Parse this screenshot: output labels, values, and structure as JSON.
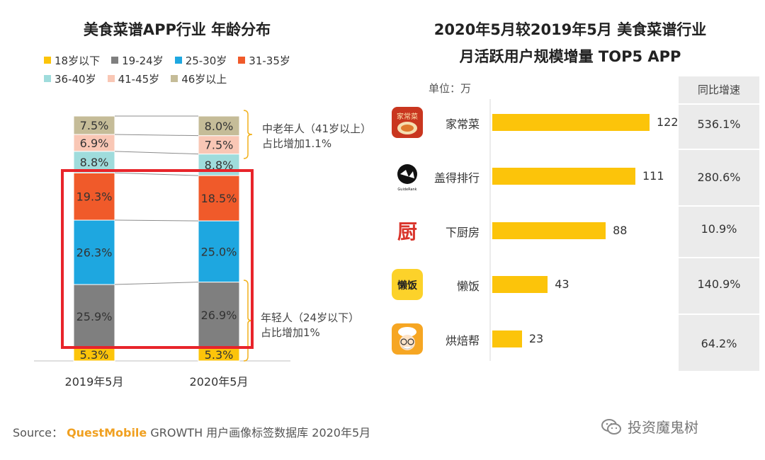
{
  "left": {
    "title": "美食菜谱APP行业 年龄分布",
    "legend": [
      {
        "label": "18岁以下",
        "color": "#fcc40a"
      },
      {
        "label": "19-24岁",
        "color": "#7f7f7f"
      },
      {
        "label": "25-30岁",
        "color": "#1ea7e0"
      },
      {
        "label": "31-35岁",
        "color": "#f05a2a"
      },
      {
        "label": "36-40岁",
        "color": "#9fdcdc"
      },
      {
        "label": "41-45岁",
        "color": "#f9c7b5"
      },
      {
        "label": "46岁以上",
        "color": "#c5bc98"
      }
    ],
    "annotation_old": {
      "line1": "中老年人（41岁以上）",
      "line2": "占比增加1.1%"
    },
    "annotation_young": {
      "line1": "年轻人（24岁以下）",
      "line2": "占比增加1%"
    }
  },
  "right": {
    "title_line1": "2020年5月较2019年5月 美食菜谱行业",
    "title_line2": "月活跃用户规模增量 TOP5 APP",
    "unit": "单位：万",
    "yoy_header": "同比增速",
    "apps": [
      {
        "name": "家常菜",
        "icon": "home-cooking-app-icon",
        "value": 122,
        "yoy": "536.1%"
      },
      {
        "name": "盖得排行",
        "icon": "lion-logo-icon",
        "value": 111,
        "yoy": "280.6%"
      },
      {
        "name": "下厨房",
        "icon": "kitchen-char-icon",
        "value": 88,
        "yoy": "10.9%"
      },
      {
        "name": "懒饭",
        "icon": "lanfan-app-icon",
        "value": 43,
        "yoy": "140.9%"
      },
      {
        "name": "烘焙帮",
        "icon": "chef-face-icon",
        "value": 23,
        "yoy": "64.2%"
      }
    ]
  },
  "chart_data": [
    {
      "type": "bar",
      "stacked": true,
      "title": "美食菜谱APP行业 年龄分布",
      "categories": [
        "2019年5月",
        "2020年5月"
      ],
      "series": [
        {
          "name": "18岁以下",
          "values": [
            5.3,
            5.3
          ],
          "color": "#fcc40a"
        },
        {
          "name": "19-24岁",
          "values": [
            25.9,
            26.9
          ],
          "color": "#7f7f7f"
        },
        {
          "name": "25-30岁",
          "values": [
            26.3,
            25.0
          ],
          "color": "#1ea7e0"
        },
        {
          "name": "31-35岁",
          "values": [
            19.3,
            18.5
          ],
          "color": "#f05a2a"
        },
        {
          "name": "36-40岁",
          "values": [
            8.8,
            8.8
          ],
          "color": "#9fdcdc"
        },
        {
          "name": "41-45岁",
          "values": [
            6.9,
            7.5
          ],
          "color": "#f9c7b5"
        },
        {
          "name": "46岁以上",
          "values": [
            7.5,
            8.0
          ],
          "color": "#c5bc98"
        }
      ],
      "legend": "top"
    },
    {
      "type": "bar",
      "orientation": "horizontal",
      "title": "2020年5月较2019年5月 美食菜谱行业 月活跃用户规模增量 TOP5 APP",
      "categories": [
        "家常菜",
        "盖得排行",
        "下厨房",
        "懒饭",
        "烘焙帮"
      ],
      "values": [
        122,
        111,
        88,
        43,
        23
      ],
      "unit": "单位：万"
    }
  ],
  "source": {
    "prefix": "Source：",
    "brand": "QuestMobile",
    "text": "GROWTH 用户画像标签数据库 2020年5月"
  },
  "watermark": "投资魔鬼树"
}
